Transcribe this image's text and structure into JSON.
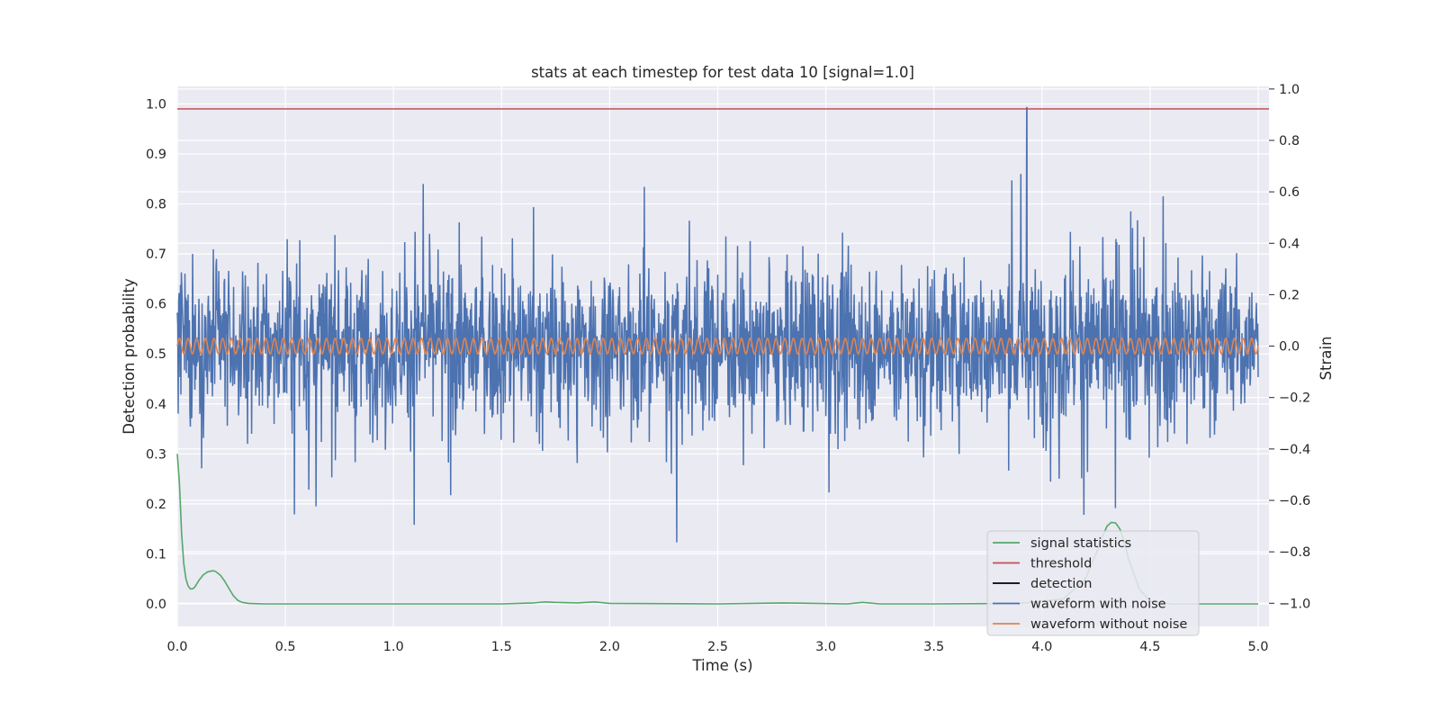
{
  "chart_data": {
    "type": "line",
    "title": "stats at each timestep for test data 10 [signal=1.0]",
    "xlabel": "Time (s)",
    "ylabel_left": "Detection probability",
    "ylabel_right": "Strain",
    "xlim": [
      0.0,
      5.05
    ],
    "ylim_left": [
      -0.045,
      1.035
    ],
    "ylim_right": [
      -1.09,
      1.01
    ],
    "x_ticks": [
      "0.0",
      "0.5",
      "1.0",
      "1.5",
      "2.0",
      "2.5",
      "3.0",
      "3.5",
      "4.0",
      "4.5",
      "5.0"
    ],
    "y_ticks_left": [
      "0.0",
      "0.1",
      "0.2",
      "0.3",
      "0.4",
      "0.5",
      "0.6",
      "0.7",
      "0.8",
      "0.9",
      "1.0"
    ],
    "y_ticks_right": [
      "−1.0",
      "−0.8",
      "−0.6",
      "−0.4",
      "−0.2",
      "0.0",
      "0.2",
      "0.4",
      "0.6",
      "0.8",
      "1.0"
    ],
    "grid": true,
    "legend_position": "lower-right",
    "series": [
      {
        "name": "signal statistics",
        "axis": "left",
        "color": "#55a868",
        "x": [
          0.0,
          0.01,
          0.02,
          0.03,
          0.04,
          0.05,
          0.06,
          0.07,
          0.08,
          0.09,
          0.1,
          0.12,
          0.14,
          0.16,
          0.17,
          0.18,
          0.2,
          0.22,
          0.24,
          0.26,
          0.28,
          0.3,
          0.33,
          0.4,
          0.6,
          1.0,
          1.5,
          1.65,
          1.7,
          1.75,
          1.85,
          1.93,
          2.0,
          2.5,
          2.8,
          3.1,
          3.17,
          3.25,
          3.5,
          3.9,
          4.1,
          4.2,
          4.25,
          4.28,
          4.3,
          4.32,
          4.34,
          4.36,
          4.38,
          4.4,
          4.45,
          4.5,
          4.6,
          5.0
        ],
        "values": [
          0.3,
          0.24,
          0.14,
          0.08,
          0.05,
          0.036,
          0.03,
          0.03,
          0.033,
          0.04,
          0.047,
          0.058,
          0.064,
          0.066,
          0.066,
          0.064,
          0.057,
          0.045,
          0.03,
          0.016,
          0.007,
          0.003,
          0.001,
          0.0,
          0.0,
          0.0,
          0.0,
          0.002,
          0.004,
          0.003,
          0.002,
          0.004,
          0.001,
          0.0,
          0.002,
          0.0,
          0.003,
          0.0,
          0.0,
          0.001,
          0.01,
          0.05,
          0.1,
          0.135,
          0.155,
          0.163,
          0.162,
          0.15,
          0.125,
          0.09,
          0.03,
          0.005,
          0.0,
          0.0
        ]
      },
      {
        "name": "threshold",
        "axis": "left",
        "color": "#c44e52",
        "x": [
          0.0,
          5.05
        ],
        "values": [
          0.99,
          0.99
        ]
      },
      {
        "name": "detection",
        "axis": "left",
        "color": "#000000",
        "x": [],
        "values": []
      },
      {
        "name": "waveform with noise",
        "axis": "right",
        "color": "#4c72b0",
        "x_range": [
          0.0,
          5.0
        ],
        "amplitude_range": [
          -0.9,
          0.93
        ],
        "typical_spread": 0.3,
        "peak_x": 3.93,
        "peak_value": 0.93
      },
      {
        "name": "waveform without noise",
        "axis": "right",
        "color": "#dd8452",
        "x_range": [
          0.0,
          5.0
        ],
        "amplitude": 0.03,
        "cycles_per_second": 25
      }
    ]
  }
}
